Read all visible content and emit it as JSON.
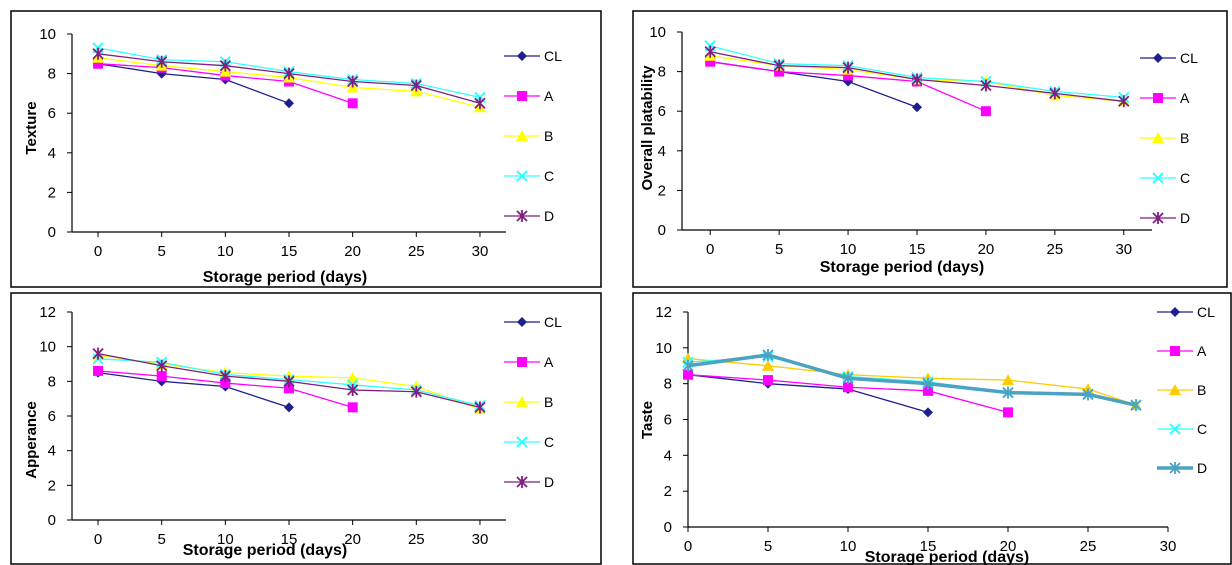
{
  "chart_data": [
    {
      "type": "line",
      "xlabel": "Storage period (days)",
      "ylabel": "Texture",
      "categories": [
        "0",
        "5",
        "10",
        "15",
        "20",
        "25",
        "30"
      ],
      "ylim": [
        0,
        10
      ],
      "yticks": [
        "0",
        "2",
        "4",
        "6",
        "8",
        "10"
      ],
      "series": [
        {
          "name": "CL",
          "values": [
            8.5,
            8.0,
            7.7,
            6.5,
            null,
            null,
            null
          ],
          "color": "#1f1f8f",
          "marker": "diamond"
        },
        {
          "name": "A",
          "values": [
            8.5,
            8.3,
            7.9,
            7.6,
            6.5,
            null,
            null
          ],
          "color": "#ff00ff",
          "marker": "square"
        },
        {
          "name": "B",
          "values": [
            8.8,
            8.4,
            8.1,
            7.8,
            7.3,
            7.1,
            6.3
          ],
          "color": "#ffff00",
          "marker": "triangle"
        },
        {
          "name": "C",
          "values": [
            9.3,
            8.7,
            8.6,
            8.1,
            7.7,
            7.5,
            6.8
          ],
          "color": "#33ffff",
          "marker": "x"
        },
        {
          "name": "D",
          "values": [
            9.0,
            8.6,
            8.4,
            8.0,
            7.6,
            7.4,
            6.5
          ],
          "color": "#7f1f7f",
          "marker": "star"
        }
      ]
    },
    {
      "type": "line",
      "xlabel": "Storage period (days)",
      "ylabel": "Overall platability",
      "categories": [
        "0",
        "5",
        "10",
        "15",
        "20",
        "25",
        "30"
      ],
      "ylim": [
        0,
        10
      ],
      "yticks": [
        "0",
        "2",
        "4",
        "6",
        "8",
        "10"
      ],
      "series": [
        {
          "name": "CL",
          "values": [
            8.5,
            8.0,
            7.5,
            6.2,
            null,
            null,
            null
          ],
          "color": "#1f1f8f",
          "marker": "diamond"
        },
        {
          "name": "A",
          "values": [
            8.5,
            8.0,
            7.8,
            7.5,
            6.0,
            null,
            null
          ],
          "color": "#ff00ff",
          "marker": "square"
        },
        {
          "name": "B",
          "values": [
            8.8,
            8.3,
            8.1,
            7.6,
            7.5,
            6.8,
            6.5
          ],
          "color": "#ffff00",
          "marker": "triangle"
        },
        {
          "name": "C",
          "values": [
            9.3,
            8.4,
            8.3,
            7.7,
            7.5,
            7.0,
            6.7
          ],
          "color": "#33ffff",
          "marker": "x"
        },
        {
          "name": "D",
          "values": [
            9.0,
            8.3,
            8.2,
            7.6,
            7.3,
            6.9,
            6.5
          ],
          "color": "#7f1f7f",
          "marker": "star"
        }
      ]
    },
    {
      "type": "line",
      "xlabel": "Storage period (days)",
      "ylabel": "Apperance",
      "categories": [
        "0",
        "5",
        "10",
        "15",
        "20",
        "25",
        "30"
      ],
      "ylim": [
        0,
        12
      ],
      "yticks": [
        "0",
        "2",
        "4",
        "6",
        "8",
        "10",
        "12"
      ],
      "series": [
        {
          "name": "CL",
          "values": [
            8.5,
            8.0,
            7.7,
            6.5,
            null,
            null,
            null
          ],
          "color": "#1f1f8f",
          "marker": "diamond"
        },
        {
          "name": "A",
          "values": [
            8.6,
            8.3,
            7.9,
            7.6,
            6.5,
            null,
            null
          ],
          "color": "#ff00ff",
          "marker": "square"
        },
        {
          "name": "B",
          "values": [
            9.5,
            9.0,
            8.5,
            8.3,
            8.2,
            7.7,
            6.4
          ],
          "color": "#ffff00",
          "marker": "triangle"
        },
        {
          "name": "C",
          "values": [
            9.3,
            9.1,
            8.4,
            8.1,
            7.8,
            7.5,
            6.6
          ],
          "color": "#33ffff",
          "marker": "x"
        },
        {
          "name": "D",
          "values": [
            9.6,
            8.9,
            8.3,
            8.0,
            7.5,
            7.4,
            6.5
          ],
          "color": "#7f1f7f",
          "marker": "star"
        }
      ]
    },
    {
      "type": "line",
      "xlabel": "Storage period (days)",
      "ylabel": "Taste",
      "x_numeric": [
        0,
        5,
        10,
        15,
        20,
        25,
        30
      ],
      "xticks": [
        "0",
        "5",
        "10",
        "15",
        "20",
        "25",
        "30"
      ],
      "xlim": [
        0,
        30
      ],
      "ylim": [
        0,
        12
      ],
      "yticks": [
        "0",
        "2",
        "4",
        "6",
        "8",
        "10",
        "12"
      ],
      "series": [
        {
          "name": "CL",
          "x": [
            0,
            5,
            10,
            15
          ],
          "values": [
            8.5,
            8.0,
            7.7,
            6.4
          ],
          "color": "#1f1f8f",
          "marker": "diamond"
        },
        {
          "name": "A",
          "x": [
            0,
            5,
            10,
            15,
            20
          ],
          "values": [
            8.5,
            8.2,
            7.8,
            7.6,
            6.4
          ],
          "color": "#ff00ff",
          "marker": "square"
        },
        {
          "name": "B",
          "x": [
            0,
            5,
            10,
            15,
            20,
            25,
            28
          ],
          "values": [
            9.4,
            9.0,
            8.5,
            8.3,
            8.2,
            7.7,
            6.8
          ],
          "color": "#ffcc00",
          "marker": "triangle"
        },
        {
          "name": "C",
          "x": [
            0,
            5,
            10,
            15,
            20,
            25,
            28
          ],
          "values": [
            9.2,
            9.5,
            8.4,
            8.1,
            7.5,
            7.4,
            6.8
          ],
          "color": "#33ffff",
          "marker": "x"
        },
        {
          "name": "D",
          "x": [
            0,
            5,
            10,
            15,
            20,
            25,
            28
          ],
          "values": [
            9.0,
            9.6,
            8.3,
            8.0,
            7.5,
            7.4,
            6.8
          ],
          "color": "#4aa3c3",
          "marker": "star",
          "thick": true
        }
      ]
    }
  ]
}
